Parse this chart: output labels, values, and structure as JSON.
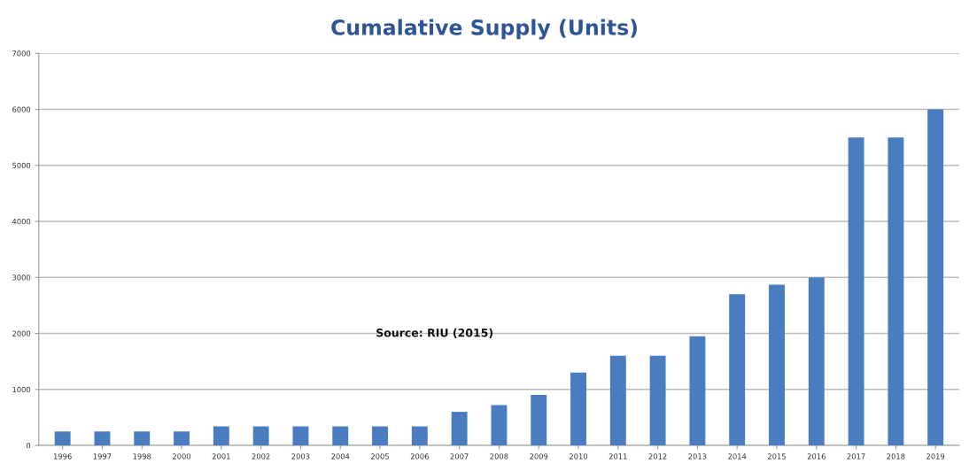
{
  "chart_data": {
    "type": "bar",
    "title": "Cumalative Supply (Units)",
    "categories": [
      "1996",
      "1997",
      "1998",
      "2000",
      "2001",
      "2002",
      "2003",
      "2004",
      "2005",
      "2006",
      "2007",
      "2008",
      "2009",
      "2010",
      "2011",
      "2012",
      "2013",
      "2014",
      "2015",
      "2016",
      "2017",
      "2018",
      "2019"
    ],
    "values": [
      250,
      250,
      250,
      250,
      340,
      340,
      340,
      340,
      340,
      340,
      600,
      720,
      900,
      1300,
      1600,
      1600,
      1950,
      2700,
      2870,
      3000,
      5500,
      5500,
      6000
    ],
    "color": "#4a7cc0",
    "ylim": [
      0,
      7000
    ],
    "yticks": [
      0,
      1000,
      2000,
      3000,
      4000,
      5000,
      6000,
      7000
    ],
    "grid": "y",
    "annotations": [
      "Source: RIU (2015)"
    ]
  }
}
